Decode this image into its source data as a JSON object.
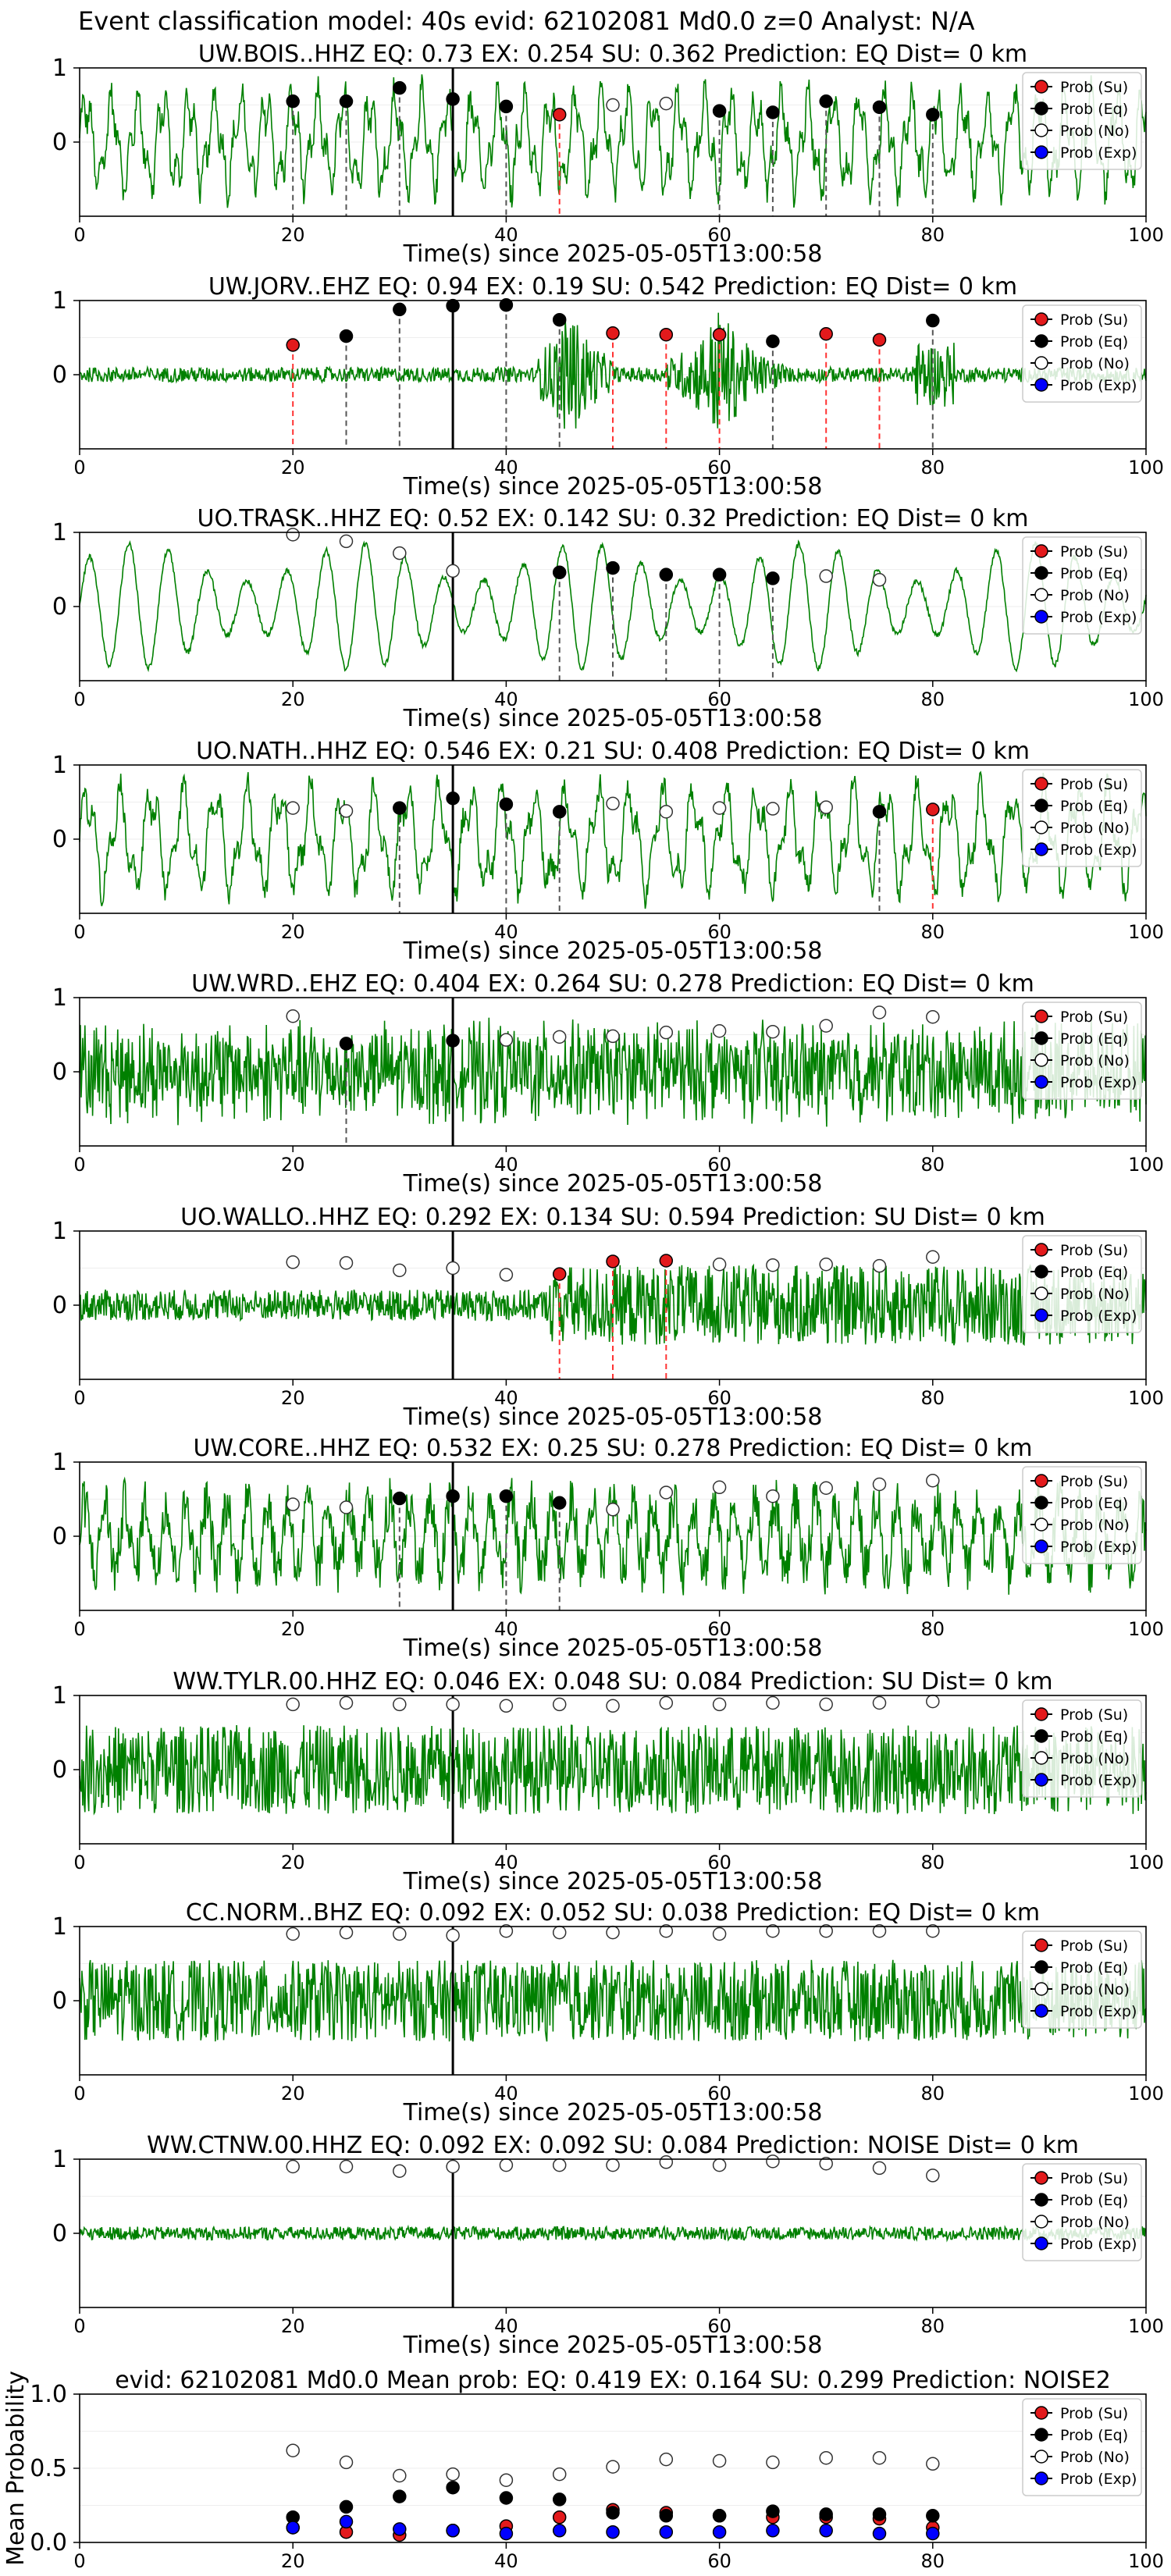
{
  "suptitle": "Event classification model: 40s evid: 62102081 Md0.0 z=0 Analyst: N/A",
  "colors": {
    "trace": "#008000",
    "su": "#e31a1c",
    "eq": "#000000",
    "no": "#ffffff",
    "exp": "#0000ff",
    "eq_line": "#555555",
    "su_line": "#ff3333"
  },
  "chart_data": [
    {
      "type": "line",
      "title": "UW.BOIS..HHZ    EQ: 0.73   EX: 0.254   SU: 0.362    Prediction: EQ     Dist= 0 km",
      "xlabel": "Time(s) since 2025-05-05T13:00:58",
      "xlim": [
        0,
        100
      ],
      "ylim": [
        -1,
        1
      ],
      "xticks": [
        0,
        20,
        40,
        60,
        80,
        100
      ],
      "yticks": [
        0,
        1
      ],
      "legend": [
        "Prob (Su)",
        "Prob (Eq)",
        "Prob (No)",
        "Prob (Exp)"
      ],
      "legend_loc": "upper right",
      "signal": "seismic trace, moderate amplitude",
      "event_line_x": 35,
      "points": [
        {
          "x": 20,
          "p": 0.55,
          "cls": "eq"
        },
        {
          "x": 25,
          "p": 0.55,
          "cls": "eq"
        },
        {
          "x": 30,
          "p": 0.73,
          "cls": "eq"
        },
        {
          "x": 35,
          "p": 0.58,
          "cls": "eq"
        },
        {
          "x": 40,
          "p": 0.48,
          "cls": "eq"
        },
        {
          "x": 45,
          "p": 0.37,
          "cls": "su"
        },
        {
          "x": 50,
          "p": 0.5,
          "cls": "no"
        },
        {
          "x": 55,
          "p": 0.52,
          "cls": "no"
        },
        {
          "x": 60,
          "p": 0.42,
          "cls": "eq"
        },
        {
          "x": 65,
          "p": 0.4,
          "cls": "eq"
        },
        {
          "x": 70,
          "p": 0.55,
          "cls": "eq"
        },
        {
          "x": 75,
          "p": 0.47,
          "cls": "eq"
        },
        {
          "x": 80,
          "p": 0.37,
          "cls": "eq"
        }
      ]
    },
    {
      "type": "line",
      "title": "UW.JORV..EHZ   EQ: 0.94  EX: 0.19   SU: 0.542    Prediction: EQ     Dist= 0 km",
      "xlabel": "Time(s) since 2025-05-05T13:00:58",
      "xlim": [
        0,
        100
      ],
      "ylim": [
        -1,
        1
      ],
      "xticks": [
        0,
        20,
        40,
        60,
        80,
        100
      ],
      "yticks": [
        0,
        1
      ],
      "legend": [
        "Prob (Su)",
        "Prob (Eq)",
        "Prob (No)",
        "Prob (Exp)"
      ],
      "legend_loc": "upper right",
      "signal": "low noise with bursts near 45s and 60s",
      "event_line_x": 35,
      "points": [
        {
          "x": 20,
          "p": 0.4,
          "cls": "su"
        },
        {
          "x": 25,
          "p": 0.52,
          "cls": "eq"
        },
        {
          "x": 30,
          "p": 0.88,
          "cls": "eq"
        },
        {
          "x": 35,
          "p": 0.93,
          "cls": "eq"
        },
        {
          "x": 40,
          "p": 0.94,
          "cls": "eq"
        },
        {
          "x": 45,
          "p": 0.74,
          "cls": "eq"
        },
        {
          "x": 50,
          "p": 0.56,
          "cls": "su"
        },
        {
          "x": 55,
          "p": 0.54,
          "cls": "su"
        },
        {
          "x": 60,
          "p": 0.54,
          "cls": "su"
        },
        {
          "x": 65,
          "p": 0.45,
          "cls": "eq"
        },
        {
          "x": 70,
          "p": 0.55,
          "cls": "su"
        },
        {
          "x": 75,
          "p": 0.47,
          "cls": "su"
        },
        {
          "x": 80,
          "p": 0.73,
          "cls": "eq"
        }
      ]
    },
    {
      "type": "line",
      "title": "UO.TRASK..HHZ    EQ: 0.52   EX: 0.142   SU: 0.32    Prediction: EQ     Dist= 0 km",
      "xlabel": "Time(s) since 2025-05-05T13:00:58",
      "xlim": [
        0,
        100
      ],
      "ylim": [
        -1,
        1
      ],
      "xticks": [
        0,
        20,
        40,
        60,
        80,
        100
      ],
      "yticks": [
        0,
        1
      ],
      "legend": [
        "Prob (Su)",
        "Prob (Eq)",
        "Prob (No)",
        "Prob (Exp)"
      ],
      "legend_loc": "upper right",
      "signal": "smooth large oscillations",
      "event_line_x": 35,
      "points": [
        {
          "x": 20,
          "p": 0.97,
          "cls": "no"
        },
        {
          "x": 25,
          "p": 0.88,
          "cls": "no"
        },
        {
          "x": 30,
          "p": 0.72,
          "cls": "no"
        },
        {
          "x": 35,
          "p": 0.48,
          "cls": "no"
        },
        {
          "x": 45,
          "p": 0.46,
          "cls": "eq"
        },
        {
          "x": 50,
          "p": 0.52,
          "cls": "eq"
        },
        {
          "x": 55,
          "p": 0.43,
          "cls": "eq"
        },
        {
          "x": 60,
          "p": 0.43,
          "cls": "eq"
        },
        {
          "x": 65,
          "p": 0.38,
          "cls": "eq"
        },
        {
          "x": 70,
          "p": 0.41,
          "cls": "no"
        },
        {
          "x": 75,
          "p": 0.36,
          "cls": "no"
        }
      ]
    },
    {
      "type": "line",
      "title": "UO.NATH..HHZ    EQ: 0.546   EX: 0.21   SU: 0.408    Prediction: EQ     Dist= 0 km",
      "xlabel": "Time(s) since 2025-05-05T13:00:58",
      "xlim": [
        0,
        100
      ],
      "ylim": [
        -1,
        1
      ],
      "xticks": [
        0,
        20,
        40,
        60,
        80,
        100
      ],
      "yticks": [
        0,
        1
      ],
      "legend": [
        "Prob (Su)",
        "Prob (Eq)",
        "Prob (No)",
        "Prob (Exp)"
      ],
      "legend_loc": "upper right",
      "signal": "oscillations with noise",
      "event_line_x": 35,
      "points": [
        {
          "x": 20,
          "p": 0.42,
          "cls": "no"
        },
        {
          "x": 25,
          "p": 0.38,
          "cls": "no"
        },
        {
          "x": 30,
          "p": 0.42,
          "cls": "eq"
        },
        {
          "x": 35,
          "p": 0.55,
          "cls": "eq"
        },
        {
          "x": 40,
          "p": 0.47,
          "cls": "eq"
        },
        {
          "x": 45,
          "p": 0.37,
          "cls": "eq"
        },
        {
          "x": 50,
          "p": 0.48,
          "cls": "no"
        },
        {
          "x": 55,
          "p": 0.37,
          "cls": "no"
        },
        {
          "x": 60,
          "p": 0.42,
          "cls": "no"
        },
        {
          "x": 65,
          "p": 0.41,
          "cls": "no"
        },
        {
          "x": 70,
          "p": 0.43,
          "cls": "no"
        },
        {
          "x": 75,
          "p": 0.37,
          "cls": "eq"
        },
        {
          "x": 80,
          "p": 0.4,
          "cls": "su"
        }
      ]
    },
    {
      "type": "line",
      "title": "UW.WRD..EHZ    EQ: 0.404   EX: 0.264   SU: 0.278    Prediction: EQ     Dist= 0 km",
      "xlabel": "Time(s) since 2025-05-05T13:00:58",
      "xlim": [
        0,
        100
      ],
      "ylim": [
        -1,
        1
      ],
      "xticks": [
        0,
        20,
        40,
        60,
        80,
        100
      ],
      "yticks": [
        0,
        1
      ],
      "legend": [
        "Prob (Su)",
        "Prob (Eq)",
        "Prob (No)",
        "Prob (Exp)"
      ],
      "legend_loc": "upper right",
      "signal": "dense high-frequency noise",
      "event_line_x": 35,
      "points": [
        {
          "x": 20,
          "p": 0.75,
          "cls": "no"
        },
        {
          "x": 25,
          "p": 0.38,
          "cls": "eq"
        },
        {
          "x": 35,
          "p": 0.42,
          "cls": "eq"
        },
        {
          "x": 40,
          "p": 0.43,
          "cls": "no"
        },
        {
          "x": 45,
          "p": 0.47,
          "cls": "no"
        },
        {
          "x": 50,
          "p": 0.48,
          "cls": "no"
        },
        {
          "x": 55,
          "p": 0.53,
          "cls": "no"
        },
        {
          "x": 60,
          "p": 0.55,
          "cls": "no"
        },
        {
          "x": 65,
          "p": 0.54,
          "cls": "no"
        },
        {
          "x": 70,
          "p": 0.62,
          "cls": "no"
        },
        {
          "x": 75,
          "p": 0.8,
          "cls": "no"
        },
        {
          "x": 80,
          "p": 0.74,
          "cls": "no"
        }
      ]
    },
    {
      "type": "line",
      "title": "UO.WALLO..HHZ    EQ: 0.292   EX: 0.134   SU: 0.594    Prediction: SU     Dist= 0 km",
      "xlabel": "Time(s) since 2025-05-05T13:00:58",
      "xlim": [
        0,
        100
      ],
      "ylim": [
        -1,
        1
      ],
      "xticks": [
        0,
        20,
        40,
        60,
        80,
        100
      ],
      "yticks": [
        0,
        1
      ],
      "legend": [
        "Prob (Su)",
        "Prob (Eq)",
        "Prob (No)",
        "Prob (Exp)"
      ],
      "legend_loc": "upper right",
      "signal": "noise increasing after 45s",
      "event_line_x": 35,
      "points": [
        {
          "x": 20,
          "p": 0.58,
          "cls": "no"
        },
        {
          "x": 25,
          "p": 0.57,
          "cls": "no"
        },
        {
          "x": 30,
          "p": 0.47,
          "cls": "no"
        },
        {
          "x": 35,
          "p": 0.5,
          "cls": "no"
        },
        {
          "x": 40,
          "p": 0.41,
          "cls": "no"
        },
        {
          "x": 45,
          "p": 0.42,
          "cls": "su"
        },
        {
          "x": 50,
          "p": 0.59,
          "cls": "su"
        },
        {
          "x": 55,
          "p": 0.6,
          "cls": "su"
        },
        {
          "x": 60,
          "p": 0.55,
          "cls": "no"
        },
        {
          "x": 65,
          "p": 0.54,
          "cls": "no"
        },
        {
          "x": 70,
          "p": 0.55,
          "cls": "no"
        },
        {
          "x": 75,
          "p": 0.53,
          "cls": "no"
        },
        {
          "x": 80,
          "p": 0.65,
          "cls": "no"
        }
      ]
    },
    {
      "type": "line",
      "title": "UW.CORE..HHZ    EQ: 0.532   EX: 0.25   SU: 0.278    Prediction: EQ     Dist= 0 km",
      "xlabel": "Time(s) since 2025-05-05T13:00:58",
      "xlim": [
        0,
        100
      ],
      "ylim": [
        -1,
        1
      ],
      "xticks": [
        0,
        20,
        40,
        60,
        80,
        100
      ],
      "yticks": [
        0,
        1
      ],
      "legend": [
        "Prob (Su)",
        "Prob (Eq)",
        "Prob (No)",
        "Prob (Exp)"
      ],
      "legend_loc": "upper right",
      "signal": "moderate noise with bursts",
      "event_line_x": 35,
      "points": [
        {
          "x": 20,
          "p": 0.43,
          "cls": "no"
        },
        {
          "x": 25,
          "p": 0.39,
          "cls": "no"
        },
        {
          "x": 30,
          "p": 0.51,
          "cls": "eq"
        },
        {
          "x": 35,
          "p": 0.54,
          "cls": "eq"
        },
        {
          "x": 40,
          "p": 0.54,
          "cls": "eq"
        },
        {
          "x": 45,
          "p": 0.45,
          "cls": "eq"
        },
        {
          "x": 50,
          "p": 0.36,
          "cls": "no"
        },
        {
          "x": 55,
          "p": 0.59,
          "cls": "no"
        },
        {
          "x": 60,
          "p": 0.66,
          "cls": "no"
        },
        {
          "x": 65,
          "p": 0.54,
          "cls": "no"
        },
        {
          "x": 70,
          "p": 0.65,
          "cls": "no"
        },
        {
          "x": 75,
          "p": 0.7,
          "cls": "no"
        },
        {
          "x": 80,
          "p": 0.75,
          "cls": "no"
        }
      ]
    },
    {
      "type": "line",
      "title": "WW.TYLR.00.HHZ    EQ: 0.046   EX: 0.048   SU: 0.084    Prediction: SU     Dist= 0 km",
      "xlabel": "Time(s) since 2025-05-05T13:00:58",
      "xlim": [
        0,
        100
      ],
      "ylim": [
        -1,
        1
      ],
      "xticks": [
        0,
        20,
        40,
        60,
        80,
        100
      ],
      "yticks": [
        0,
        1
      ],
      "legend": [
        "Prob (Su)",
        "Prob (Eq)",
        "Prob (No)",
        "Prob (Exp)"
      ],
      "legend_loc": "upper right",
      "signal": "dense noise",
      "event_line_x": 35,
      "points": [
        {
          "x": 20,
          "p": 0.88,
          "cls": "no"
        },
        {
          "x": 25,
          "p": 0.9,
          "cls": "no"
        },
        {
          "x": 30,
          "p": 0.88,
          "cls": "no"
        },
        {
          "x": 35,
          "p": 0.88,
          "cls": "no"
        },
        {
          "x": 40,
          "p": 0.86,
          "cls": "no"
        },
        {
          "x": 45,
          "p": 0.88,
          "cls": "no"
        },
        {
          "x": 50,
          "p": 0.86,
          "cls": "no"
        },
        {
          "x": 55,
          "p": 0.9,
          "cls": "no"
        },
        {
          "x": 60,
          "p": 0.88,
          "cls": "no"
        },
        {
          "x": 65,
          "p": 0.9,
          "cls": "no"
        },
        {
          "x": 70,
          "p": 0.88,
          "cls": "no"
        },
        {
          "x": 75,
          "p": 0.9,
          "cls": "no"
        },
        {
          "x": 80,
          "p": 0.92,
          "cls": "no"
        }
      ]
    },
    {
      "type": "line",
      "title": "CC.NORM..BHZ    EQ: 0.092   EX: 0.052   SU: 0.038    Prediction: EQ     Dist= 0 km",
      "xlabel": "Time(s) since 2025-05-05T13:00:58",
      "xlim": [
        0,
        100
      ],
      "ylim": [
        -1,
        1
      ],
      "xticks": [
        0,
        20,
        40,
        60,
        80,
        100
      ],
      "yticks": [
        0,
        1
      ],
      "legend": [
        "Prob (Su)",
        "Prob (Eq)",
        "Prob (No)",
        "Prob (Exp)"
      ],
      "legend_loc": "upper right",
      "signal": "dense noise",
      "event_line_x": 35,
      "points": [
        {
          "x": 20,
          "p": 0.9,
          "cls": "no"
        },
        {
          "x": 25,
          "p": 0.92,
          "cls": "no"
        },
        {
          "x": 30,
          "p": 0.9,
          "cls": "no"
        },
        {
          "x": 35,
          "p": 0.88,
          "cls": "no"
        },
        {
          "x": 40,
          "p": 0.94,
          "cls": "no"
        },
        {
          "x": 45,
          "p": 0.92,
          "cls": "no"
        },
        {
          "x": 50,
          "p": 0.92,
          "cls": "no"
        },
        {
          "x": 55,
          "p": 0.94,
          "cls": "no"
        },
        {
          "x": 60,
          "p": 0.9,
          "cls": "no"
        },
        {
          "x": 65,
          "p": 0.94,
          "cls": "no"
        },
        {
          "x": 70,
          "p": 0.94,
          "cls": "no"
        },
        {
          "x": 75,
          "p": 0.94,
          "cls": "no"
        },
        {
          "x": 80,
          "p": 0.94,
          "cls": "no"
        }
      ]
    },
    {
      "type": "line",
      "title": "WW.CTNW.00.HHZ    EQ: 0.092   EX: 0.092   SU: 0.084    Prediction: NOISE     Dist= 0 km",
      "xlabel": "Time(s) since 2025-05-05T13:00:58",
      "xlim": [
        0,
        100
      ],
      "ylim": [
        -1,
        1
      ],
      "xticks": [
        0,
        20,
        40,
        60,
        80,
        100
      ],
      "yticks": [
        0,
        1
      ],
      "legend": [
        "Prob (Su)",
        "Prob (Eq)",
        "Prob (No)",
        "Prob (Exp)"
      ],
      "legend_loc": "upper right",
      "signal": "very low amplitude noise",
      "event_line_x": 35,
      "points": [
        {
          "x": 20,
          "p": 0.9,
          "cls": "no"
        },
        {
          "x": 25,
          "p": 0.9,
          "cls": "no"
        },
        {
          "x": 30,
          "p": 0.84,
          "cls": "no"
        },
        {
          "x": 35,
          "p": 0.9,
          "cls": "no"
        },
        {
          "x": 40,
          "p": 0.92,
          "cls": "no"
        },
        {
          "x": 45,
          "p": 0.92,
          "cls": "no"
        },
        {
          "x": 50,
          "p": 0.92,
          "cls": "no"
        },
        {
          "x": 55,
          "p": 0.96,
          "cls": "no"
        },
        {
          "x": 60,
          "p": 0.92,
          "cls": "no"
        },
        {
          "x": 65,
          "p": 0.97,
          "cls": "no"
        },
        {
          "x": 70,
          "p": 0.94,
          "cls": "no"
        },
        {
          "x": 75,
          "p": 0.88,
          "cls": "no"
        },
        {
          "x": 80,
          "p": 0.78,
          "cls": "no"
        }
      ]
    },
    {
      "type": "scatter",
      "title": "evid: 62102081   Md0.0    Mean prob:    EQ: 0.419   EX: 0.164   SU: 0.299    Prediction: NOISE2",
      "ylabel": "Mean Probability",
      "xlim": [
        0,
        100
      ],
      "ylim": [
        0,
        1
      ],
      "xticks": [
        0,
        20,
        40,
        60,
        80,
        100
      ],
      "yticks": [
        0.0,
        0.5,
        1.0
      ],
      "legend": [
        "Prob (Su)",
        "Prob (Eq)",
        "Prob (No)",
        "Prob (Exp)"
      ],
      "legend_loc": "upper right",
      "x": [
        20,
        25,
        30,
        35,
        40,
        45,
        50,
        55,
        60,
        65,
        70,
        75,
        80
      ],
      "series": [
        {
          "name": "Prob (Su)",
          "cls": "su",
          "values": [
            0.1,
            0.07,
            0.05,
            0.08,
            0.11,
            0.17,
            0.22,
            0.2,
            0.18,
            0.17,
            0.17,
            0.16,
            0.1
          ]
        },
        {
          "name": "Prob (Eq)",
          "cls": "eq",
          "values": [
            0.17,
            0.24,
            0.31,
            0.37,
            0.3,
            0.29,
            0.2,
            0.18,
            0.18,
            0.21,
            0.19,
            0.19,
            0.18
          ]
        },
        {
          "name": "Prob (No)",
          "cls": "no",
          "values": [
            0.62,
            0.54,
            0.45,
            0.46,
            0.42,
            0.46,
            0.51,
            0.56,
            0.55,
            0.54,
            0.57,
            0.57,
            0.53
          ]
        },
        {
          "name": "Prob (Exp)",
          "cls": "exp",
          "values": [
            0.1,
            0.14,
            0.09,
            0.08,
            0.06,
            0.08,
            0.07,
            0.07,
            0.07,
            0.08,
            0.08,
            0.06,
            0.06
          ]
        }
      ]
    }
  ]
}
